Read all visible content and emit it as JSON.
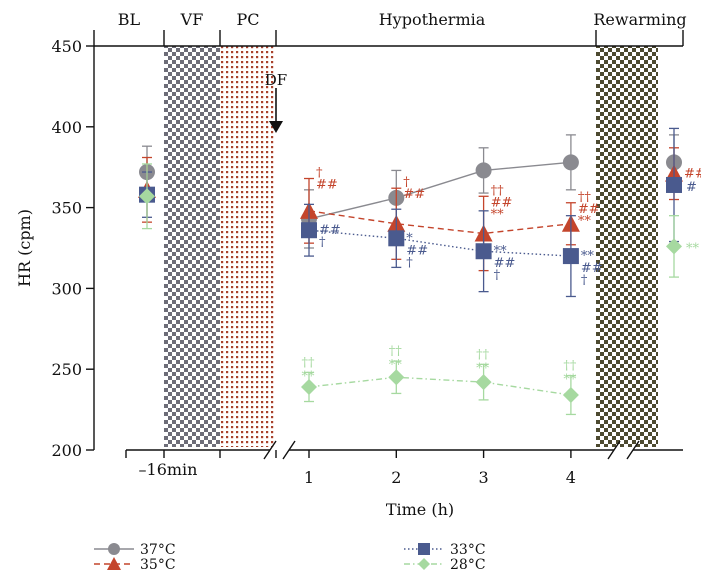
{
  "chart_data": {
    "type": "line",
    "ylabel": "HR (cpm)",
    "xlabel": "Time (h)",
    "ylim": [
      200,
      450
    ],
    "yticks": [
      200,
      250,
      300,
      350,
      400,
      450
    ],
    "x_tick_labels": [
      "–16min",
      "1",
      "2",
      "3",
      "4"
    ],
    "phases": [
      "BL",
      "VF",
      "PC",
      "Hypothermia",
      "Rewarming"
    ],
    "df_label": "DF",
    "grid": false,
    "legend_position": "bottom",
    "series": [
      {
        "name": "37°C",
        "color": "#8a8a90",
        "marker": "circle",
        "dash": "solid",
        "baseline": {
          "y": 372,
          "err": 16
        },
        "hypothermia": [
          {
            "x": 1,
            "y": 343,
            "err": 18
          },
          {
            "x": 2,
            "y": 356,
            "err": 17
          },
          {
            "x": 3,
            "y": 373,
            "err": 14
          },
          {
            "x": 4,
            "y": 378,
            "err": 17
          }
        ],
        "rewarming": {
          "y": 378,
          "err": 17
        }
      },
      {
        "name": "35°C",
        "color": "#c4452c",
        "marker": "triangle",
        "dash": "dashed",
        "baseline": {
          "y": 361,
          "err": 20
        },
        "hypothermia": [
          {
            "x": 1,
            "y": 348,
            "err": 20
          },
          {
            "x": 2,
            "y": 340,
            "err": 22
          },
          {
            "x": 3,
            "y": 334,
            "err": 23
          },
          {
            "x": 4,
            "y": 340,
            "err": 13
          }
        ],
        "rewarming": {
          "y": 371,
          "err": 16
        }
      },
      {
        "name": "33°C",
        "color": "#4a5a8e",
        "marker": "square",
        "dash": "dotted",
        "baseline": {
          "y": 358,
          "err": 14
        },
        "hypothermia": [
          {
            "x": 1,
            "y": 336,
            "err": 16
          },
          {
            "x": 2,
            "y": 331,
            "err": 18
          },
          {
            "x": 3,
            "y": 323,
            "err": 25
          },
          {
            "x": 4,
            "y": 320,
            "err": 25
          }
        ],
        "rewarming": {
          "y": 364,
          "err": 35
        }
      },
      {
        "name": "28°C",
        "color": "#a6d9a0",
        "marker": "diamond",
        "dash": "dashdot",
        "baseline": {
          "y": 357,
          "err": 20
        },
        "hypothermia": [
          {
            "x": 1,
            "y": 239,
            "err": 9
          },
          {
            "x": 2,
            "y": 245,
            "err": 10
          },
          {
            "x": 3,
            "y": 242,
            "err": 11
          },
          {
            "x": 4,
            "y": 234,
            "err": 12
          }
        ],
        "rewarming": {
          "y": 326,
          "err": 19
        }
      }
    ],
    "annotations": [
      {
        "series": "35°C",
        "point": 1,
        "text": "†"
      },
      {
        "series": "35°C",
        "point": 1,
        "text": "##"
      },
      {
        "series": "33°C",
        "point": 1,
        "text": "##"
      },
      {
        "series": "33°C",
        "point": 1,
        "text": "†"
      },
      {
        "series": "35°C",
        "point": 2,
        "text": "†"
      },
      {
        "series": "35°C",
        "point": 2,
        "text": "##"
      },
      {
        "series": "33°C",
        "point": 2,
        "text": "*"
      },
      {
        "series": "33°C",
        "point": 2,
        "text": "##"
      },
      {
        "series": "33°C",
        "point": 2,
        "text": "†"
      },
      {
        "series": "35°C",
        "point": 3,
        "text": "††"
      },
      {
        "series": "35°C",
        "point": 3,
        "text": "##"
      },
      {
        "series": "35°C",
        "point": 3,
        "text": "**"
      },
      {
        "series": "33°C",
        "point": 3,
        "text": "**"
      },
      {
        "series": "33°C",
        "point": 3,
        "text": "##"
      },
      {
        "series": "33°C",
        "point": 3,
        "text": "†"
      },
      {
        "series": "35°C",
        "point": 4,
        "text": "††"
      },
      {
        "series": "35°C",
        "point": 4,
        "text": "##"
      },
      {
        "series": "35°C",
        "point": 4,
        "text": "**"
      },
      {
        "series": "33°C",
        "point": 4,
        "text": "**"
      },
      {
        "series": "33°C",
        "point": 4,
        "text": "##"
      },
      {
        "series": "33°C",
        "point": 4,
        "text": "†"
      },
      {
        "series": "28°C",
        "point": 1,
        "text": "††"
      },
      {
        "series": "28°C",
        "point": 1,
        "text": "**"
      },
      {
        "series": "28°C",
        "point": 2,
        "text": "††"
      },
      {
        "series": "28°C",
        "point": 2,
        "text": "**"
      },
      {
        "series": "28°C",
        "point": 3,
        "text": "††"
      },
      {
        "series": "28°C",
        "point": 3,
        "text": "**"
      },
      {
        "series": "28°C",
        "point": 4,
        "text": "††"
      },
      {
        "series": "28°C",
        "point": 4,
        "text": "**"
      },
      {
        "series": "35°C",
        "point": "rewarming",
        "text": "##"
      },
      {
        "series": "33°C",
        "point": "rewarming",
        "text": "#"
      },
      {
        "series": "28°C",
        "point": "rewarming",
        "text": "**"
      }
    ]
  }
}
